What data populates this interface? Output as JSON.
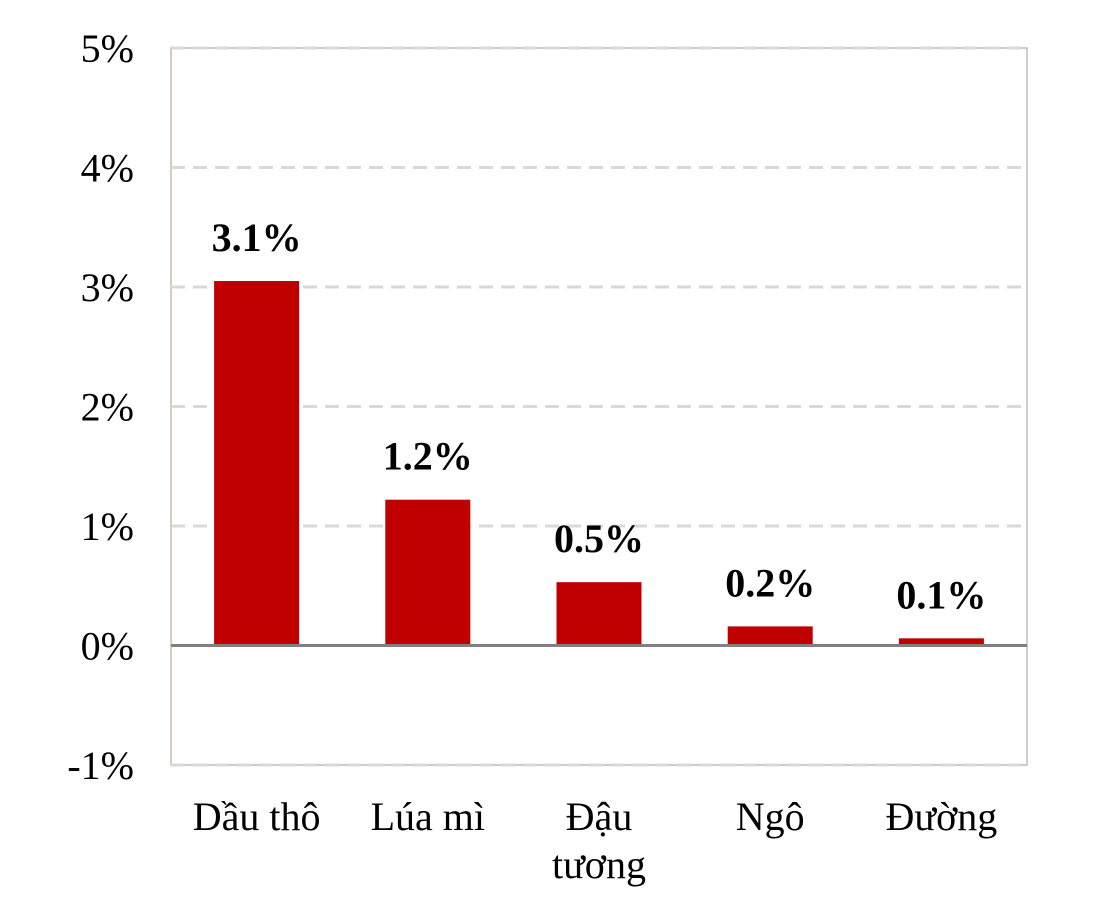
{
  "chart_data": {
    "type": "bar",
    "categories": [
      [
        "Dầu thô"
      ],
      [
        "Lúa mì"
      ],
      [
        "Đậu",
        "tương"
      ],
      [
        "Ngô"
      ],
      [
        "Đường"
      ]
    ],
    "values": [
      3.05,
      1.22,
      0.53,
      0.16,
      0.06
    ],
    "data_labels": [
      "3.1%",
      "1.2%",
      "0.5%",
      "0.2%",
      "0.1%"
    ],
    "ylim": [
      -1,
      5
    ],
    "yticks": [
      5,
      4,
      3,
      2,
      1,
      0,
      -1
    ],
    "ytick_labels": [
      "5%",
      "4%",
      "3%",
      "2%",
      "1%",
      "0%",
      "-1%"
    ],
    "grid": "horizontal dashed",
    "bar_color": "#c00000",
    "grid_color": "#d9d9d9",
    "zero_line_color": "#808080",
    "frame_color": "#c8b8b0"
  }
}
